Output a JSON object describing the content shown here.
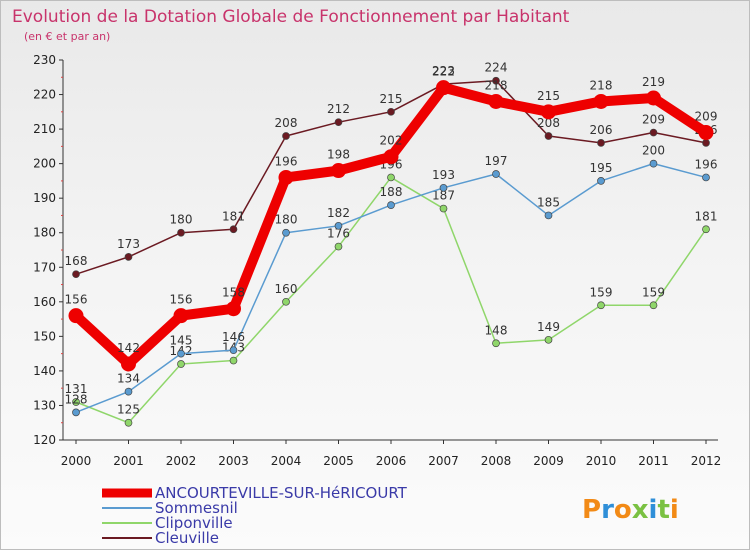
{
  "chart_data": {
    "type": "line",
    "title": "Evolution de la Dotation Globale de Fonctionnement par Habitant",
    "subtitle": "(en € et par an)",
    "xlabel": "",
    "ylabel": "",
    "x": [
      "2000",
      "2001",
      "2002",
      "2003",
      "2004",
      "2005",
      "2006",
      "2007",
      "2008",
      "2009",
      "2010",
      "2011",
      "2012"
    ],
    "ylim": [
      120,
      230
    ],
    "yticks": [
      120,
      130,
      140,
      150,
      160,
      170,
      180,
      190,
      200,
      210,
      220,
      230
    ],
    "grid": false,
    "legend_position": "bottom-left",
    "series": [
      {
        "name": "Cleuville",
        "color": "#6b1a22",
        "values": [
          168,
          173,
          180,
          181,
          208,
          212,
          215,
          223,
          224,
          208,
          206,
          209,
          206
        ],
        "labels": [
          "168",
          "173",
          "180",
          "181",
          "208",
          "212",
          "215",
          "223",
          "224",
          "208",
          "206",
          "209",
          "206"
        ]
      },
      {
        "name": "Cliponville",
        "color": "#8fd66a",
        "values": [
          131,
          125,
          142,
          143,
          160,
          176,
          196,
          187,
          148,
          149,
          159,
          159,
          181
        ],
        "labels": [
          "131",
          "125",
          "142",
          "143",
          "160",
          "176",
          "196",
          "187",
          "148",
          "149",
          "159",
          "159",
          "181"
        ]
      },
      {
        "name": "Sommesnil",
        "color": "#5a9bd0",
        "values": [
          128,
          134,
          145,
          146,
          180,
          182,
          188,
          193,
          197,
          185,
          195,
          200,
          196
        ],
        "labels": [
          "128",
          "134",
          "145",
          "146",
          "180",
          "182",
          "188",
          "193",
          "197",
          "185",
          "195",
          "200",
          "196"
        ]
      },
      {
        "name": "ANCOURTEVILLE-SUR-HéRICOURT",
        "color": "#ee0000",
        "values": [
          156,
          142,
          156,
          158,
          196,
          198,
          202,
          222,
          218,
          215,
          218,
          219,
          209
        ],
        "labels": [
          "156",
          "142",
          "156",
          "158",
          "196",
          "198",
          "202",
          "222",
          "218",
          "215",
          "218",
          "219",
          "209"
        ]
      }
    ],
    "legend_order": [
      "ANCOURTEVILLE-SUR-HéRICOURT",
      "Sommesnil",
      "Cliponville",
      "Cleuville"
    ]
  },
  "brand": {
    "logo_text": "Proxiti"
  }
}
